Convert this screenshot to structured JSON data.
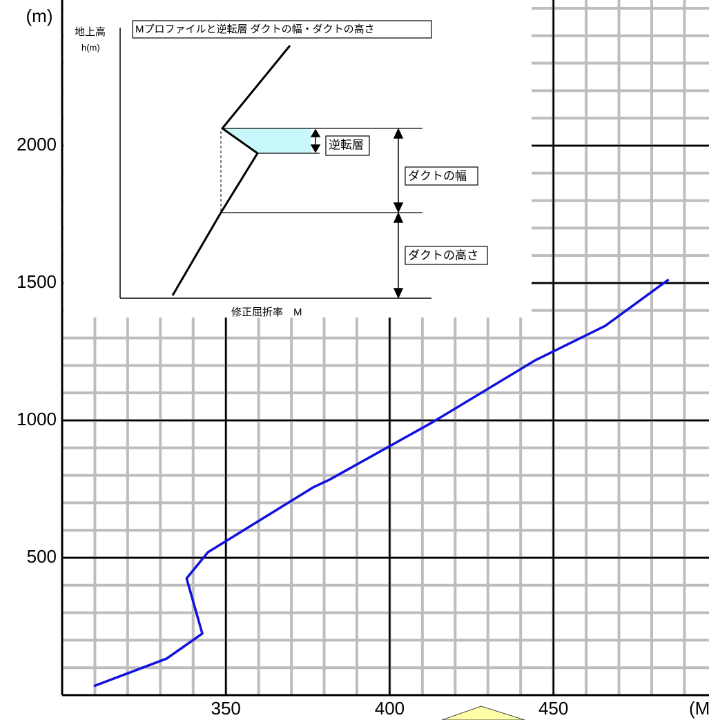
{
  "chart_data": {
    "type": "line",
    "y_label": "(m)",
    "x_label": "(M)",
    "x": [
      309.7,
      331.9,
      342.8,
      338.0,
      344.5,
      376.6,
      381.6,
      412.9,
      444.5,
      465.8,
      485.2
    ],
    "values": [
      33,
      133,
      224,
      425,
      520,
      756,
      784,
      992,
      1219,
      1344,
      1513
    ],
    "color": "#1010e0",
    "xlim": [
      300,
      497.5
    ],
    "ylim": [
      0,
      2530
    ],
    "xticks": [
      350,
      400,
      450
    ],
    "yticks": [
      500,
      1000,
      1500,
      2000
    ],
    "grid": true,
    "inset": {
      "title": "Mプロファイルと逆転層 ダクトの幅・ダクトの高さ",
      "y_label": "地上高",
      "y_unit": "h(m)",
      "x_label": "修正屈折率　M",
      "inversion": "逆転層",
      "duct_width": "ダクトの幅",
      "duct_height": "ダクトの高さ"
    }
  }
}
